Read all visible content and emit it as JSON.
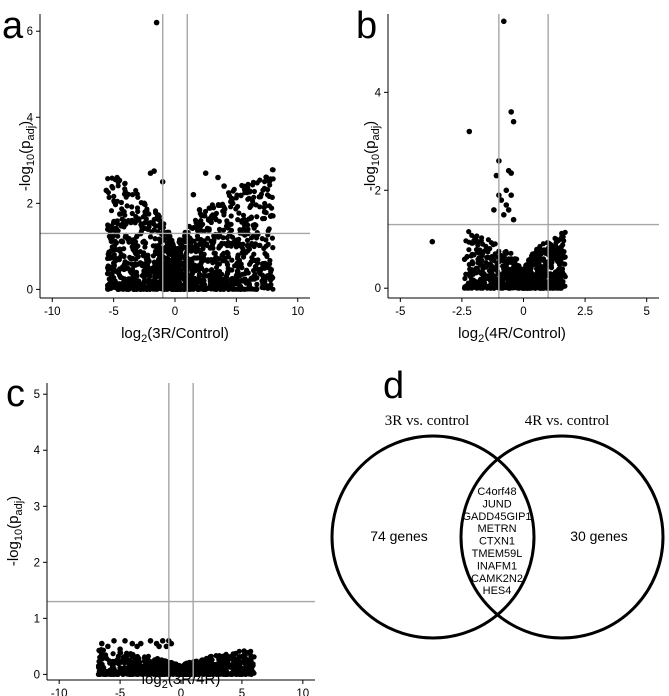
{
  "chart_data": [
    {
      "panel_label": "a",
      "type": "scatter",
      "xlabel_base": "log",
      "xlabel_sub": "2",
      "xlabel_rest": "(3R/Control)",
      "ylabel_base": "-log",
      "ylabel_sub": "10",
      "ylabel_mid": "(p",
      "ylabel_sub2": "adj",
      "ylabel_end": ")",
      "xlim": [
        -11,
        11
      ],
      "ylim": [
        -0.2,
        6.4
      ],
      "xticks": [
        -10,
        -5,
        0,
        5,
        10
      ],
      "yticks": [
        0,
        2,
        4,
        6
      ],
      "vlines": [
        -1,
        1
      ],
      "hline": 1.3,
      "grid": false,
      "cloud": {
        "x_min": -5.5,
        "x_max": 8.0,
        "max_y": 2.8,
        "count": 1500,
        "seed": 11
      },
      "points": [
        [
          -1.5,
          6.2
        ],
        [
          -5.6,
          2.3
        ],
        [
          -4.0,
          1.25
        ],
        [
          -2.0,
          2.7
        ],
        [
          -1.7,
          2.75
        ],
        [
          -1.0,
          2.5
        ],
        [
          2.5,
          2.7
        ],
        [
          3.5,
          2.6
        ],
        [
          4.0,
          2.4
        ],
        [
          4.7,
          2.0
        ],
        [
          6.2,
          1.95
        ],
        [
          7.3,
          1.8
        ],
        [
          7.8,
          1.7
        ],
        [
          5.5,
          1.6
        ],
        [
          6.5,
          1.5
        ],
        [
          -4.5,
          1.75
        ],
        [
          -3.5,
          1.6
        ],
        [
          2.0,
          1.85
        ],
        [
          1.5,
          2.2
        ],
        [
          -2.5,
          2.0
        ],
        [
          -2.2,
          1.4
        ],
        [
          3.0,
          1.7
        ]
      ]
    },
    {
      "panel_label": "b",
      "type": "scatter",
      "xlabel_base": "log",
      "xlabel_sub": "2",
      "xlabel_rest": "(4R/Control)",
      "ylabel_base": "-log",
      "ylabel_sub": "10",
      "ylabel_mid": "(p",
      "ylabel_sub2": "adj",
      "ylabel_end": ")",
      "xlim": [
        -5.5,
        5.5
      ],
      "ylim": [
        -0.2,
        5.6
      ],
      "xticks": [
        -5,
        -2.5,
        0,
        2.5,
        5
      ],
      "xtick_labels": [
        "-5",
        "-2.5",
        "0",
        "2.5",
        "5"
      ],
      "yticks": [
        0,
        2,
        4
      ],
      "vlines": [
        -1,
        1
      ],
      "hline": 1.3,
      "grid": false,
      "cloud": {
        "x_min": -2.4,
        "x_max": 1.7,
        "max_y": 1.2,
        "count": 800,
        "seed": 23
      },
      "points": [
        [
          -0.8,
          5.45
        ],
        [
          -0.5,
          3.6
        ],
        [
          -0.4,
          3.4
        ],
        [
          -2.2,
          3.2
        ],
        [
          -1.0,
          2.6
        ],
        [
          -0.6,
          2.4
        ],
        [
          -0.5,
          2.35
        ],
        [
          -1.1,
          2.3
        ],
        [
          -0.7,
          2.0
        ],
        [
          -0.9,
          1.8
        ],
        [
          -3.7,
          0.95
        ],
        [
          -0.6,
          1.6
        ],
        [
          -0.8,
          1.5
        ],
        [
          -1.2,
          1.6
        ],
        [
          -0.4,
          1.4
        ],
        [
          -0.5,
          1.9
        ],
        [
          -1.0,
          1.9
        ],
        [
          -0.7,
          1.7
        ]
      ]
    },
    {
      "panel_label": "c",
      "type": "scatter",
      "xlabel_base": "log",
      "xlabel_sub": "2",
      "xlabel_rest": "(3R/4R)",
      "ylabel_base": "-log",
      "ylabel_sub": "10",
      "ylabel_mid": "(p",
      "ylabel_sub2": "adj",
      "ylabel_end": ")",
      "xlim": [
        -11,
        11
      ],
      "ylim": [
        -0.1,
        5.2
      ],
      "xticks": [
        -10,
        -5,
        0,
        5,
        10
      ],
      "yticks": [
        0,
        1,
        2,
        3,
        4,
        5
      ],
      "vlines": [
        -1,
        1
      ],
      "hline": 1.3,
      "grid": false,
      "cloud": {
        "x_min": -6.8,
        "x_max": 6.0,
        "max_y": 0.45,
        "count": 900,
        "seed": 37
      },
      "points": [
        [
          -6.5,
          0.55
        ],
        [
          -5.5,
          0.6
        ],
        [
          -4.6,
          0.6
        ],
        [
          -4.0,
          0.55
        ],
        [
          -3.3,
          0.55
        ],
        [
          -2.5,
          0.6
        ],
        [
          -2.0,
          0.55
        ],
        [
          -1.5,
          0.6
        ],
        [
          -1.0,
          0.6
        ],
        [
          -0.8,
          0.55
        ],
        [
          -6.0,
          0.5
        ],
        [
          -5.0,
          0.45
        ],
        [
          -3.6,
          0.5
        ],
        [
          -1.8,
          0.5
        ],
        [
          -1.2,
          0.5
        ],
        [
          5.3,
          0.2
        ],
        [
          3.0,
          0.15
        ],
        [
          4.5,
          0.12
        ]
      ]
    }
  ],
  "venn": {
    "panel_label": "d",
    "left_title": "3R vs. control",
    "right_title": "4R vs. control",
    "left_count": "74 genes",
    "right_count": "30 genes",
    "shared_genes": [
      "C4orf48",
      "JUND",
      "GADD45GIP1",
      "METRN",
      "CTXN1",
      "TMEM59L",
      "INAFM1",
      "CAMK2N2",
      "HES4"
    ]
  }
}
